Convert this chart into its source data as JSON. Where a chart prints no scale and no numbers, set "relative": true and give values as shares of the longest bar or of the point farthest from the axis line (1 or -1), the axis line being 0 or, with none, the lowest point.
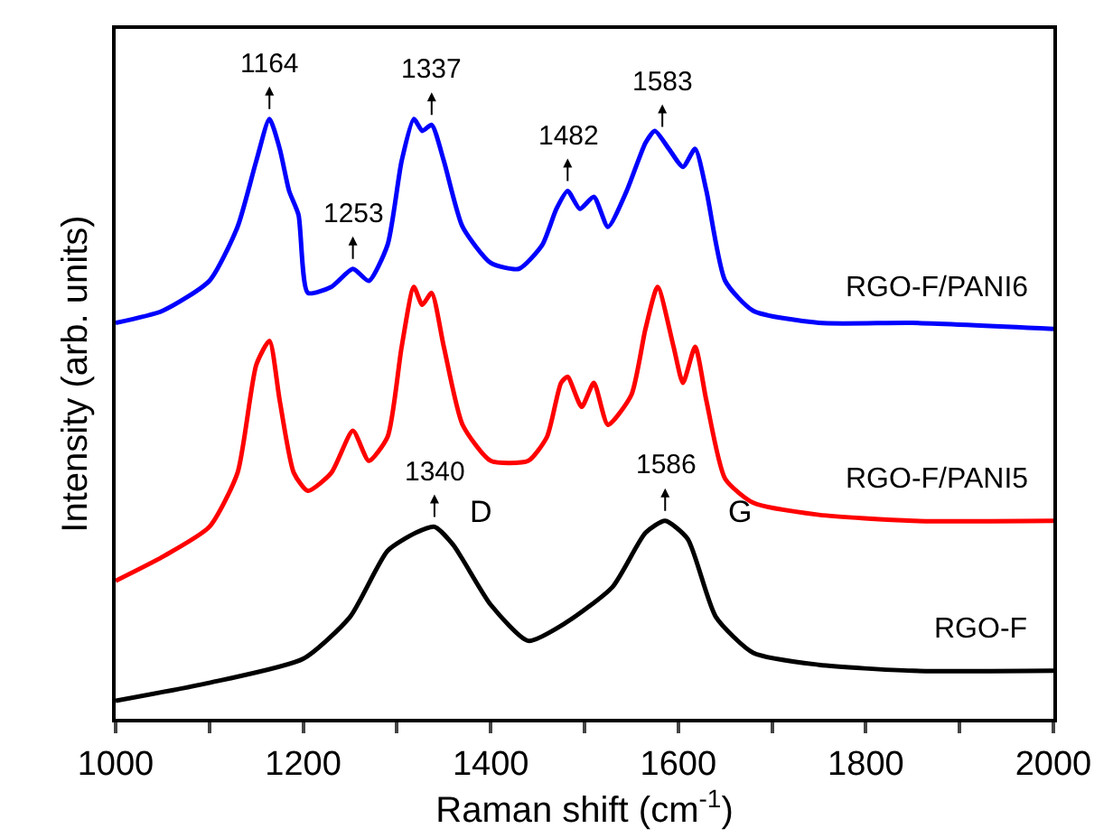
{
  "chart_data": {
    "type": "line",
    "relative": true,
    "xlabel": "Raman shift (cm$^{-1}$)",
    "ylabel": "Intensity (arb. units)",
    "xlim": [
      1000,
      2000
    ],
    "xticks": [
      1000,
      {
        "value": 1100,
        "label": null
      },
      1200,
      {
        "value": 1300,
        "label": null
      },
      1400,
      {
        "value": 1500,
        "label": null
      },
      1600,
      {
        "value": 1700,
        "label": null
      },
      1800,
      {
        "value": 1900,
        "label": null
      },
      2000
    ],
    "tick_labels": "x",
    "grid": false,
    "legend": false,
    "marker": "none",
    "line_style": "solid",
    "series": [
      {
        "name": "RGO-F/PANI6",
        "color": "#0000ff",
        "x": [
          1000,
          1050,
          1100,
          1130,
          1150,
          1164,
          1175,
          1185,
          1195,
          1205,
          1230,
          1253,
          1270,
          1290,
          1305,
          1318,
          1327,
          1337,
          1350,
          1370,
          1400,
          1430,
          1455,
          1470,
          1482,
          1495,
          1510,
          1525,
          1545,
          1565,
          1575,
          1590,
          1605,
          1618,
          1630,
          1650,
          1680,
          1750,
          1850,
          2000
        ],
        "values": [
          0.66,
          0.68,
          0.73,
          0.82,
          0.93,
          1.0,
          0.95,
          0.88,
          0.84,
          0.71,
          0.72,
          0.75,
          0.73,
          0.79,
          0.93,
          1.0,
          0.98,
          0.99,
          0.93,
          0.82,
          0.76,
          0.75,
          0.79,
          0.85,
          0.88,
          0.85,
          0.87,
          0.82,
          0.88,
          0.96,
          0.98,
          0.95,
          0.92,
          0.95,
          0.88,
          0.73,
          0.68,
          0.66,
          0.66,
          0.65
        ]
      },
      {
        "name": "RGO-F/PANI5",
        "color": "#ff0000",
        "x": [
          1000,
          1050,
          1100,
          1130,
          1150,
          1164,
          1175,
          1190,
          1205,
          1230,
          1253,
          1270,
          1290,
          1305,
          1318,
          1327,
          1337,
          1350,
          1370,
          1400,
          1440,
          1460,
          1475,
          1482,
          1497,
          1510,
          1525,
          1550,
          1565,
          1578,
          1595,
          1605,
          1618,
          1630,
          1650,
          1680,
          1750,
          1850,
          2000
        ],
        "values": [
          0.23,
          0.27,
          0.32,
          0.41,
          0.59,
          0.63,
          0.53,
          0.41,
          0.38,
          0.41,
          0.48,
          0.43,
          0.47,
          0.62,
          0.72,
          0.69,
          0.71,
          0.62,
          0.49,
          0.43,
          0.43,
          0.47,
          0.56,
          0.57,
          0.52,
          0.56,
          0.49,
          0.54,
          0.65,
          0.72,
          0.62,
          0.56,
          0.62,
          0.53,
          0.4,
          0.36,
          0.34,
          0.33,
          0.33
        ]
      },
      {
        "name": "RGO-F",
        "color": "#000000",
        "x": [
          1000,
          1100,
          1200,
          1250,
          1290,
          1320,
          1340,
          1360,
          1400,
          1440,
          1480,
          1530,
          1565,
          1586,
          1610,
          1640,
          1680,
          1750,
          1850,
          2000
        ],
        "values": [
          0.03,
          0.06,
          0.1,
          0.17,
          0.28,
          0.31,
          0.32,
          0.29,
          0.19,
          0.13,
          0.16,
          0.22,
          0.31,
          0.33,
          0.3,
          0.17,
          0.11,
          0.09,
          0.08,
          0.08
        ]
      }
    ],
    "annotations": [
      {
        "text": "1164",
        "x": 1164,
        "y": 1.0
      },
      {
        "text": "1253",
        "x": 1253,
        "y": 0.75
      },
      {
        "text": "1337",
        "x": 1337,
        "y": 0.99
      },
      {
        "text": "1482",
        "x": 1482,
        "y": 0.88
      },
      {
        "text": "1583",
        "x": 1583,
        "y": 0.97
      },
      {
        "text": "1340",
        "x": 1340,
        "y": 0.32
      },
      {
        "text": "1586",
        "x": 1586,
        "y": 0.33
      },
      "D",
      "G"
    ]
  }
}
